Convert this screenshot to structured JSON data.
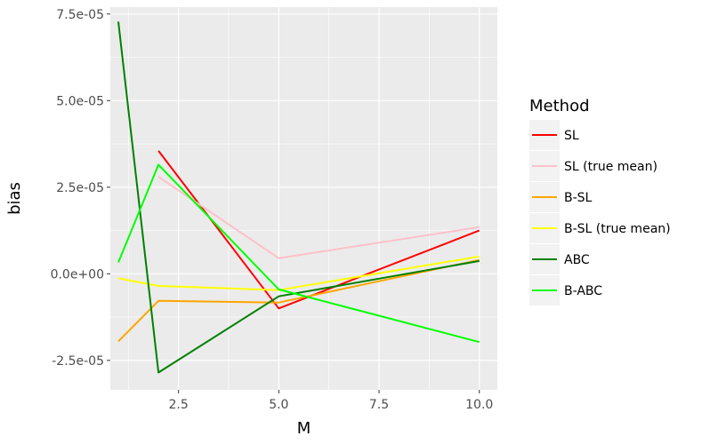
{
  "chart_data": {
    "type": "line",
    "xlabel": "M",
    "ylabel": "bias",
    "xlim": [
      0.8,
      10.45
    ],
    "ylim": [
      -3.35e-05,
      7.7e-05
    ],
    "x_ticks": [
      2.5,
      5.0,
      7.5,
      10.0
    ],
    "x_tick_labels": [
      "2.5",
      "5.0",
      "7.5",
      "10.0"
    ],
    "y_ticks": [
      -2.5e-05,
      0.0,
      2.5e-05,
      5e-05,
      7.5e-05
    ],
    "y_tick_labels": [
      "-2.5e-05",
      "0.0e+00",
      "2.5e-05",
      "5.0e-05",
      "7.5e-05"
    ],
    "grid": true,
    "legend_title": "Method",
    "legend_position": "right",
    "series": [
      {
        "name": "SL",
        "color": "#ff0000",
        "x": [
          2,
          5,
          10
        ],
        "values": [
          3.55e-05,
          -1e-05,
          1.25e-05
        ]
      },
      {
        "name": "SL (true mean)",
        "color": "#ffc0cb",
        "x": [
          2,
          5,
          10
        ],
        "values": [
          2.8e-05,
          4.5e-06,
          1.35e-05
        ]
      },
      {
        "name": "B-SL",
        "color": "#ffa500",
        "x": [
          1,
          2,
          5,
          10
        ],
        "values": [
          -1.95e-05,
          -7.8e-06,
          -8.3e-06,
          4e-06
        ]
      },
      {
        "name": "B-SL (true mean)",
        "color": "#ffff00",
        "x": [
          1,
          2,
          5,
          10
        ],
        "values": [
          -1.3e-06,
          -3.5e-06,
          -4.7e-06,
          5e-06
        ]
      },
      {
        "name": "ABC",
        "color": "#008000",
        "x": [
          1,
          2,
          5,
          10
        ],
        "values": [
          7.28e-05,
          -2.85e-05,
          -6.5e-06,
          3.7e-06
        ]
      },
      {
        "name": "B-ABC",
        "color": "#00ff00",
        "x": [
          1,
          2,
          5,
          10
        ],
        "values": [
          3.3e-06,
          3.15e-05,
          -4.5e-06,
          -1.97e-05
        ]
      }
    ]
  }
}
